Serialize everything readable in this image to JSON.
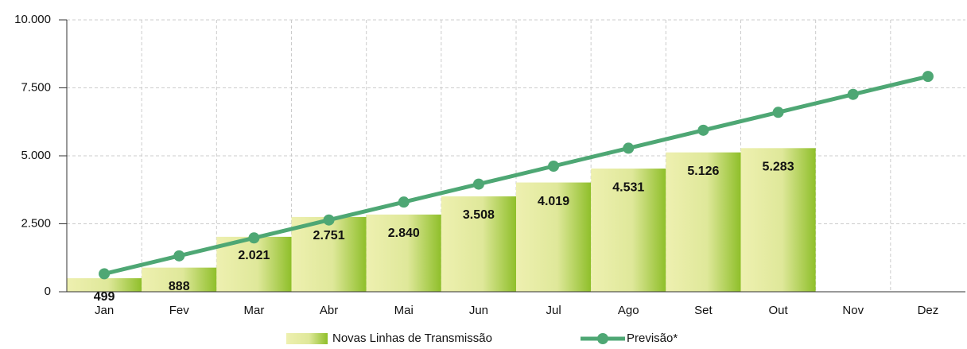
{
  "chart_data": {
    "type": "bar",
    "categories": [
      "Jan",
      "Fev",
      "Mar",
      "Abr",
      "Mai",
      "Jun",
      "Jul",
      "Ago",
      "Set",
      "Out",
      "Nov",
      "Dez"
    ],
    "series": [
      {
        "name": "Novas Linhas de Transmissão",
        "type": "bar",
        "color": "#8fbf2a",
        "values": [
          499,
          888,
          2021,
          2751,
          2840,
          3508,
          4019,
          4531,
          5126,
          5283,
          null,
          null
        ],
        "value_labels": [
          "499",
          "888",
          "2.021",
          "2.751",
          "2.840",
          "3.508",
          "4.019",
          "4.531",
          "5.126",
          "5.283",
          null,
          null
        ]
      },
      {
        "name": "Previsão*",
        "type": "line",
        "color": "#4ea774",
        "values": [
          660,
          1320,
          1980,
          2640,
          3300,
          3960,
          4620,
          5280,
          5940,
          6600,
          7260,
          7920
        ]
      }
    ],
    "ylim": [
      0,
      10000
    ],
    "yticks": [
      0,
      {
        "value": 2500,
        "label": "2.500"
      },
      {
        "value": 5000,
        "label": "5.000"
      },
      {
        "value": 7500,
        "label": "7.500"
      },
      {
        "value": 10000,
        "label": "10.000"
      }
    ],
    "grid": true
  }
}
